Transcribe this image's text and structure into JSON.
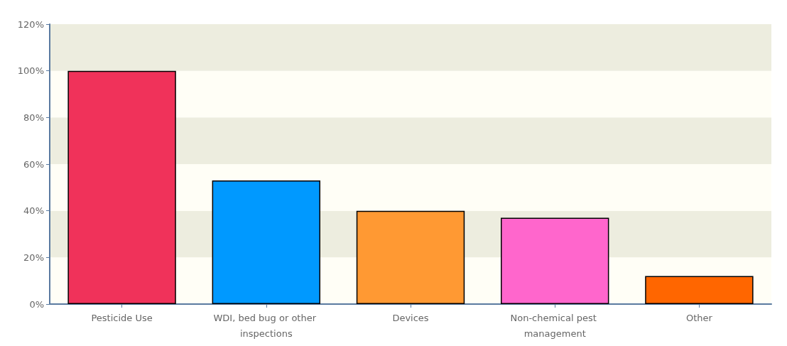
{
  "chart_data": {
    "type": "bar",
    "categories": [
      "Pesticide Use",
      "WDI, bed bug or other inspections",
      "Devices",
      "Non-chemical pest management",
      "Other"
    ],
    "values": [
      100,
      53,
      40,
      37,
      12
    ],
    "colors": [
      "#f0325a",
      "#0099ff",
      "#ff9933",
      "#ff66cc",
      "#ff6600"
    ],
    "ylim": [
      0,
      120
    ],
    "yticks": [
      {
        "value": 0,
        "label": "0%"
      },
      {
        "value": 20,
        "label": "20%"
      },
      {
        "value": 40,
        "label": "40%"
      },
      {
        "value": 60,
        "label": "60%"
      },
      {
        "value": 80,
        "label": "80%"
      },
      {
        "value": 100,
        "label": "100%"
      },
      {
        "value": 120,
        "label": "120%"
      }
    ]
  }
}
